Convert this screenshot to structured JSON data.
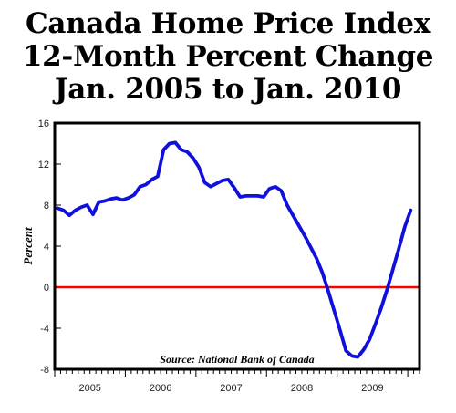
{
  "chart_data": {
    "type": "line",
    "title_lines": [
      "Canada Home Price Index",
      "12-Month Percent Change",
      "Jan. 2005 to Jan. 2010"
    ],
    "ylabel": "Percent",
    "xlabel": "",
    "source": "Source: National Bank of Canada",
    "ylim": [
      -8,
      16
    ],
    "y_ticks": [
      "-8",
      "-4",
      "0",
      "4",
      "8",
      "12",
      "16"
    ],
    "x_ticks": [
      "2005",
      "2006",
      "2007",
      "2008",
      "2009"
    ],
    "reference_line": 0,
    "line_color": "#1010dd",
    "reference_color": "#ff0000",
    "series": [
      {
        "x": [
          "2005-01",
          "2005-02",
          "2005-03",
          "2005-04",
          "2005-05",
          "2005-06",
          "2005-07",
          "2005-08",
          "2005-09",
          "2005-10",
          "2005-11",
          "2005-12",
          "2006-01",
          "2006-02",
          "2006-03",
          "2006-04",
          "2006-05",
          "2006-06",
          "2006-07",
          "2006-08",
          "2006-09",
          "2006-10",
          "2006-11",
          "2006-12",
          "2007-01",
          "2007-02",
          "2007-03",
          "2007-04",
          "2007-05",
          "2007-06",
          "2007-07",
          "2007-08",
          "2007-09",
          "2007-10",
          "2007-11",
          "2007-12",
          "2008-01",
          "2008-02",
          "2008-03",
          "2008-04",
          "2008-05",
          "2008-06",
          "2008-07",
          "2008-08",
          "2008-09",
          "2008-10",
          "2008-11",
          "2008-12",
          "2009-01",
          "2009-02",
          "2009-03",
          "2009-04",
          "2009-05",
          "2009-06",
          "2009-07",
          "2009-08",
          "2009-09",
          "2009-10",
          "2009-11",
          "2009-12",
          "2010-01"
        ],
        "values": [
          7.7,
          7.5,
          7.0,
          7.5,
          7.8,
          8.0,
          7.1,
          8.3,
          8.4,
          8.6,
          8.7,
          8.5,
          8.7,
          9.0,
          9.8,
          10.0,
          10.5,
          10.8,
          13.4,
          14.0,
          14.1,
          13.4,
          13.2,
          12.6,
          11.7,
          10.2,
          9.8,
          10.1,
          10.4,
          10.5,
          9.7,
          8.8,
          8.9,
          8.9,
          8.9,
          8.8,
          9.6,
          9.8,
          9.4,
          8.0,
          7.0,
          6.0,
          5.0,
          3.9,
          2.8,
          1.4,
          -0.4,
          -2.3,
          -4.2,
          -6.2,
          -6.7,
          -6.8,
          -6.1,
          -5.1,
          -3.6,
          -2.0,
          -0.2,
          1.8,
          3.8,
          5.9,
          7.5
        ]
      }
    ],
    "grid": false,
    "legend": "none"
  }
}
